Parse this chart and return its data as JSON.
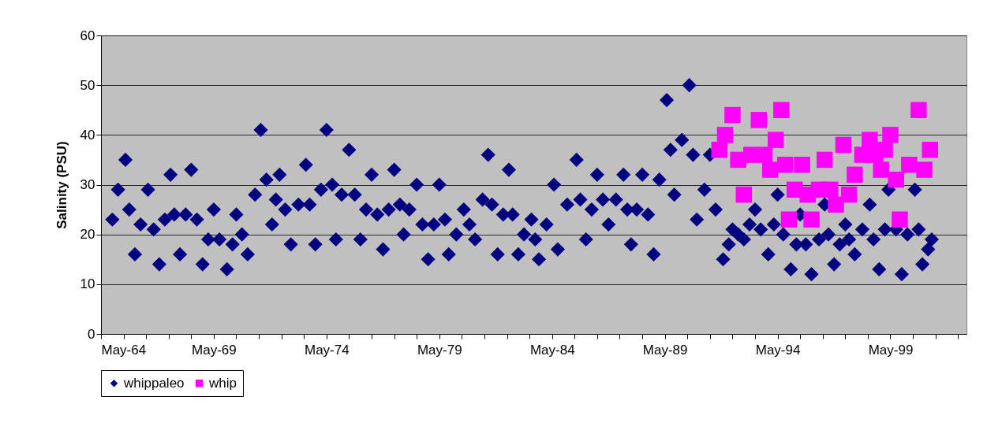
{
  "chart_data": {
    "type": "scatter",
    "ylabel": "Salinity (PSU)",
    "xlim": [
      "1964-05-01",
      "2002-09-15"
    ],
    "ylim": [
      0,
      60
    ],
    "xticks": [
      {
        "value": "1964-05-01",
        "label": "May-64"
      },
      {
        "value": "1965-05-01",
        "label": null
      },
      {
        "value": "1966-05-01",
        "label": null
      },
      {
        "value": "1967-05-01",
        "label": null
      },
      {
        "value": "1968-05-01",
        "label": null
      },
      {
        "value": "1969-05-01",
        "label": "May-69"
      },
      {
        "value": "1970-05-01",
        "label": null
      },
      {
        "value": "1971-05-01",
        "label": null
      },
      {
        "value": "1972-05-01",
        "label": null
      },
      {
        "value": "1973-05-01",
        "label": null
      },
      {
        "value": "1974-05-01",
        "label": "May-74"
      },
      {
        "value": "1975-05-01",
        "label": null
      },
      {
        "value": "1976-05-01",
        "label": null
      },
      {
        "value": "1977-05-01",
        "label": null
      },
      {
        "value": "1978-05-01",
        "label": null
      },
      {
        "value": "1979-05-01",
        "label": "May-79"
      },
      {
        "value": "1980-05-01",
        "label": null
      },
      {
        "value": "1981-05-01",
        "label": null
      },
      {
        "value": "1982-05-01",
        "label": null
      },
      {
        "value": "1983-05-01",
        "label": null
      },
      {
        "value": "1984-05-01",
        "label": "May-84"
      },
      {
        "value": "1985-05-01",
        "label": null
      },
      {
        "value": "1986-05-01",
        "label": null
      },
      {
        "value": "1987-05-01",
        "label": null
      },
      {
        "value": "1988-05-01",
        "label": null
      },
      {
        "value": "1989-05-01",
        "label": "May-89"
      },
      {
        "value": "1990-05-01",
        "label": null
      },
      {
        "value": "1991-05-01",
        "label": null
      },
      {
        "value": "1992-05-01",
        "label": null
      },
      {
        "value": "1993-05-01",
        "label": null
      },
      {
        "value": "1994-05-01",
        "label": "May-94"
      },
      {
        "value": "1995-05-01",
        "label": null
      },
      {
        "value": "1996-05-01",
        "label": null
      },
      {
        "value": "1997-05-01",
        "label": null
      },
      {
        "value": "1998-05-01",
        "label": null
      },
      {
        "value": "1999-05-01",
        "label": "May-99"
      },
      {
        "value": "2000-05-01",
        "label": null
      },
      {
        "value": "2001-05-01",
        "label": null
      },
      {
        "value": "2002-05-01",
        "label": null
      }
    ],
    "yticks": [
      0,
      10,
      20,
      30,
      40,
      50,
      60
    ],
    "grid": "y",
    "legend": "bottom",
    "series": [
      {
        "name": "whippaleo",
        "color": "#000080",
        "marker": "diamond",
        "x": [
          "1964-11",
          "1965-02",
          "1965-06",
          "1965-08",
          "1965-11",
          "1966-02",
          "1966-06",
          "1966-09",
          "1966-12",
          "1967-03",
          "1967-06",
          "1967-08",
          "1967-11",
          "1968-02",
          "1968-05",
          "1968-08",
          "1968-11",
          "1969-02",
          "1969-05",
          "1969-08",
          "1969-12",
          "1970-03",
          "1970-05",
          "1970-08",
          "1970-11",
          "1971-03",
          "1971-06",
          "1971-09",
          "1971-12",
          "1972-02",
          "1972-04",
          "1972-07",
          "1972-10",
          "1973-02",
          "1973-06",
          "1973-08",
          "1973-11",
          "1974-02",
          "1974-05",
          "1974-08",
          "1974-10",
          "1975-01",
          "1975-05",
          "1975-08",
          "1975-11",
          "1976-02",
          "1976-05",
          "1976-08",
          "1976-11",
          "1977-02",
          "1977-05",
          "1977-08",
          "1977-10",
          "1978-01",
          "1978-05",
          "1978-08",
          "1978-11",
          "1979-02",
          "1979-05",
          "1979-08",
          "1979-10",
          "1980-02",
          "1980-06",
          "1980-09",
          "1980-12",
          "1981-04",
          "1981-07",
          "1981-09",
          "1981-12",
          "1982-03",
          "1982-06",
          "1982-08",
          "1982-11",
          "1983-02",
          "1983-06",
          "1983-08",
          "1983-10",
          "1984-02",
          "1984-06",
          "1984-08",
          "1985-01",
          "1985-06",
          "1985-08",
          "1985-11",
          "1986-02",
          "1986-05",
          "1986-08",
          "1986-11",
          "1987-03",
          "1987-07",
          "1987-09",
          "1987-11",
          "1988-02",
          "1988-05",
          "1988-08",
          "1988-11",
          "1989-02",
          "1989-06",
          "1989-08",
          "1989-10",
          "1990-02",
          "1990-06",
          "1990-08",
          "1990-10",
          "1991-02",
          "1991-05",
          "1991-08",
          "1991-12",
          "1992-03",
          "1992-05",
          "1992-08",
          "1992-11",
          "1993-02",
          "1993-05",
          "1993-08",
          "1993-12",
          "1994-03",
          "1994-05",
          "1994-08",
          "1994-12",
          "1995-03",
          "1995-05",
          "1995-08",
          "1995-11",
          "1996-03",
          "1996-06",
          "1996-08",
          "1996-11",
          "1997-02",
          "1997-05",
          "1997-07",
          "1997-10",
          "1998-02",
          "1998-06",
          "1998-08",
          "1998-11",
          "1999-02",
          "1999-04",
          "1999-08",
          "1999-11",
          "2000-02",
          "2000-06",
          "2000-08",
          "2000-10",
          "2001-01",
          "2001-03"
        ],
        "values": [
          23,
          29,
          35,
          25,
          16,
          22,
          29,
          21,
          14,
          23,
          32,
          24,
          16,
          24,
          33,
          23,
          14,
          19,
          25,
          19,
          13,
          18,
          24,
          20,
          16,
          28,
          41,
          31,
          22,
          27,
          32,
          25,
          18,
          26,
          34,
          26,
          18,
          29,
          41,
          30,
          19,
          28,
          37,
          28,
          19,
          25,
          32,
          24,
          17,
          25,
          33,
          26,
          20,
          25,
          30,
          22,
          15,
          22,
          30,
          23,
          16,
          20,
          25,
          22,
          19,
          27,
          36,
          26,
          16,
          24,
          33,
          24,
          16,
          20,
          23,
          19,
          15,
          22,
          30,
          17,
          26,
          35,
          27,
          19,
          25,
          32,
          27,
          22,
          27,
          32,
          25,
          18,
          25,
          32,
          24,
          16,
          31,
          47,
          37,
          28,
          39,
          50,
          36,
          23,
          29,
          36,
          25,
          15,
          18,
          21,
          20,
          19,
          22,
          25,
          21,
          16,
          22,
          28,
          20,
          13,
          18,
          24,
          18,
          12,
          19,
          26,
          20,
          14,
          18,
          22,
          19,
          16,
          21,
          26,
          19,
          13,
          21,
          29,
          21,
          12,
          20,
          29,
          21,
          14,
          17,
          19
        ]
      },
      {
        "name": "whip",
        "color": "#ff00ff",
        "marker": "square",
        "x": [
          "1991-10",
          "1992-01",
          "1992-05",
          "1992-08",
          "1992-11",
          "1993-03",
          "1993-07",
          "1993-10",
          "1994-01",
          "1994-04",
          "1994-07",
          "1994-09",
          "1994-11",
          "1995-02",
          "1995-06",
          "1995-09",
          "1995-11",
          "1996-03",
          "1996-06",
          "1996-09",
          "1996-12",
          "1997-04",
          "1997-07",
          "1997-10",
          "1998-02",
          "1998-06",
          "1998-09",
          "1998-12",
          "1999-02",
          "1999-05",
          "1999-08",
          "1999-10",
          "2000-03",
          "2000-08",
          "2000-11",
          "2001-02"
        ],
        "values": [
          37,
          40,
          44,
          35,
          28,
          36,
          43,
          36,
          33,
          39,
          45,
          34,
          23,
          29,
          34,
          28,
          23,
          29,
          35,
          29,
          26,
          38,
          28,
          32,
          36,
          39,
          36,
          33,
          37,
          40,
          31,
          23,
          34,
          45,
          33,
          37
        ]
      }
    ]
  }
}
